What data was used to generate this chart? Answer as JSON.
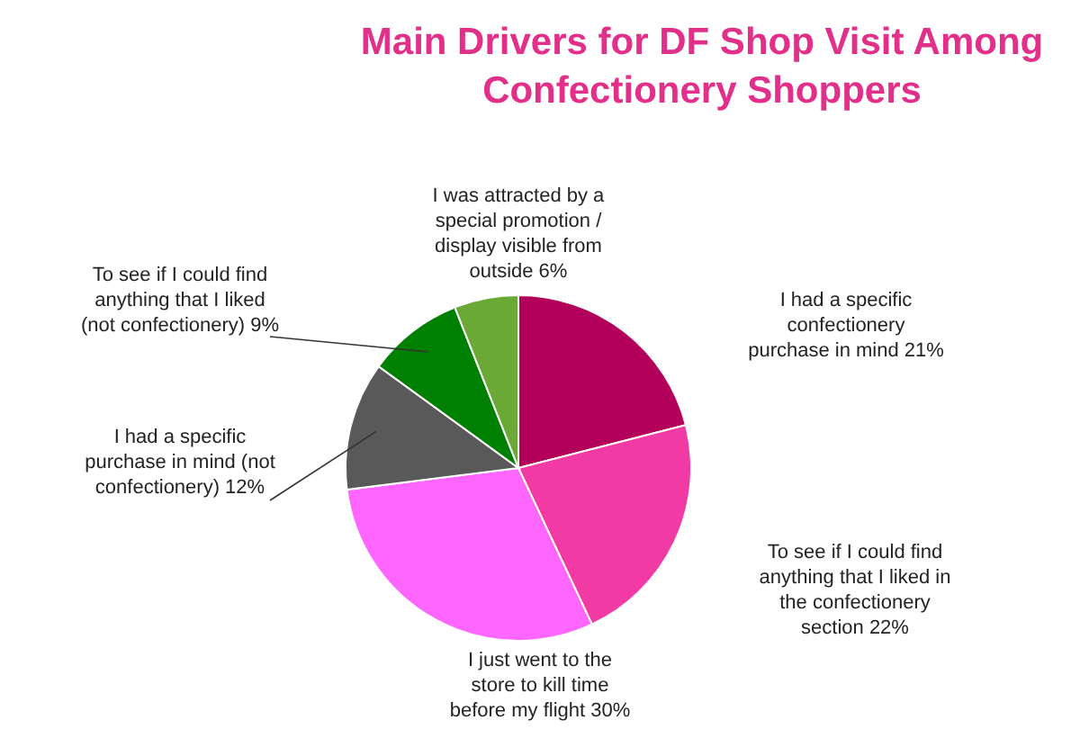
{
  "chart_data": {
    "type": "pie",
    "title": "Main Drivers for DF Shop Visit Among Confectionery Shoppers",
    "categories": [
      "I had a specific confectionery purchase in mind",
      "To see if I could find anything that I liked in the confectionery section",
      "I just went to the store to kill time before my flight",
      "I had a specific purchase in mind (not confectionery)",
      "To see if I could find anything that I liked (not confectionery)",
      "I was attracted by a special promotion / display visible from outside"
    ],
    "values": [
      21,
      22,
      30,
      12,
      9,
      6
    ],
    "value_labels": [
      "21%",
      "22%",
      "30%",
      "12%",
      "9%",
      "6%"
    ],
    "colors": [
      "#b3005a",
      "#f23aa5",
      "#ff66ff",
      "#595959",
      "#008000",
      "#6aa936"
    ]
  }
}
